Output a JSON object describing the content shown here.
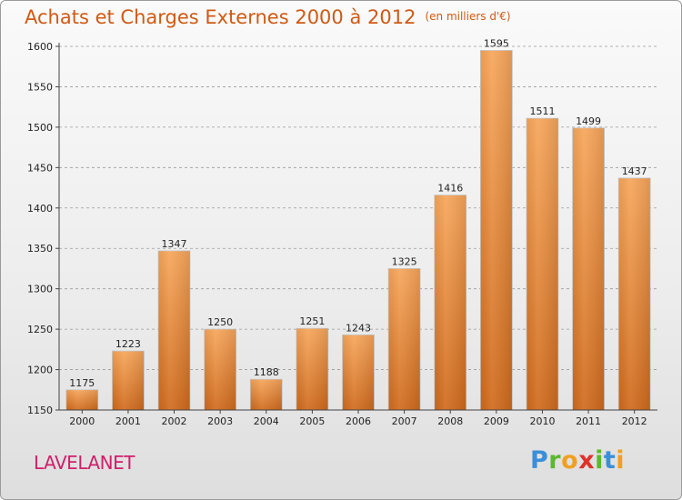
{
  "header": {
    "title": "Achats et Charges Externes 2000 à 2012",
    "unit": "(en milliers d'€)"
  },
  "footer": {
    "city": "LAVELANET",
    "logo_letters": [
      "P",
      "r",
      "o",
      "x",
      "i",
      "t",
      "i"
    ]
  },
  "colors": {
    "bar_light": "#f7a65a",
    "bar_dark": "#d06a1c",
    "title": "#d05a14",
    "city": "#d0206a",
    "logo": [
      "#3a8fd8",
      "#5cb82e",
      "#f0a020",
      "#e0322a",
      "#5cb82e",
      "#3a8fd8",
      "#f0a020"
    ]
  },
  "chart_data": {
    "type": "bar",
    "title": "Achats et Charges Externes 2000 à 2012",
    "subtitle": "(en milliers d'€)",
    "categories": [
      "2000",
      "2001",
      "2002",
      "2003",
      "2004",
      "2005",
      "2006",
      "2007",
      "2008",
      "2009",
      "2010",
      "2011",
      "2012"
    ],
    "values": [
      1175,
      1223,
      1347,
      1250,
      1188,
      1251,
      1243,
      1325,
      1416,
      1595,
      1511,
      1499,
      1437
    ],
    "ylim": [
      1150,
      1600
    ],
    "yticks": [
      1150,
      1200,
      1250,
      1300,
      1350,
      1400,
      1450,
      1500,
      1550,
      1600
    ],
    "grid": "horizontal-dashed",
    "data_labels": true
  }
}
